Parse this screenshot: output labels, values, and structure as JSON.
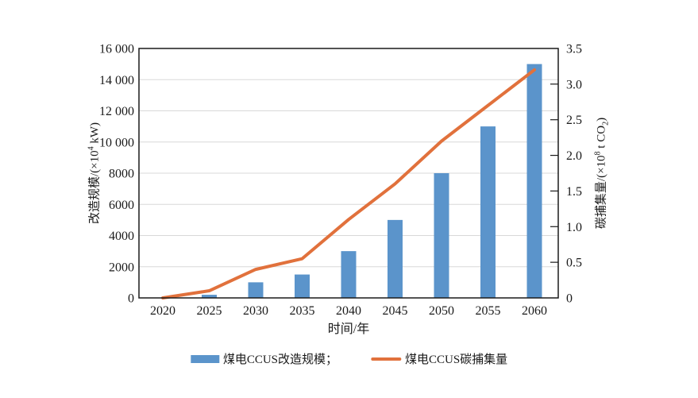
{
  "chart_data": {
    "type": "combo-bar-line",
    "categories": [
      "2020",
      "2025",
      "2030",
      "2035",
      "2040",
      "2045",
      "2050",
      "2055",
      "2060"
    ],
    "series": [
      {
        "name": "煤电CCUS改造规模",
        "type": "bar",
        "axis": "left",
        "values": [
          0,
          200,
          1000,
          1500,
          3000,
          5000,
          8000,
          11000,
          15000
        ]
      },
      {
        "name": "煤电CCUS碳捕集量",
        "type": "line",
        "axis": "right",
        "values": [
          0,
          0.1,
          0.4,
          0.55,
          1.1,
          1.6,
          2.2,
          2.7,
          3.2
        ]
      }
    ],
    "title": "",
    "xlabel": "时间/年",
    "grid": true,
    "legend_position": "bottom",
    "y_left": {
      "title_prefix": "改造规模/(×10",
      "title_sup": "4",
      "title_suffix": " kW)",
      "min": 0,
      "max": 16000,
      "tick_step": 2000,
      "tick_labels": [
        "0",
        "2000",
        "4000",
        "6000",
        "8000",
        "10 000",
        "12 000",
        "14 000",
        "16 000"
      ]
    },
    "y_right": {
      "title_prefix": "碳捕集量/(×10",
      "title_sup": "8",
      "title_mid": " t CO",
      "title_sub": "2",
      "title_suffix": ")",
      "min": 0,
      "max": 3.5,
      "tick_step": 0.5,
      "tick_labels": [
        "0",
        "0.5",
        "1.0",
        "1.5",
        "2.0",
        "2.5",
        "3.0",
        "3.5"
      ]
    },
    "legend": [
      {
        "label": "煤电CCUS改造规模；",
        "swatch": "bar"
      },
      {
        "label": "煤电CCUS碳捕集量",
        "swatch": "line"
      }
    ]
  },
  "colors": {
    "bar": "#5B94CB",
    "line": "#E1713C",
    "grid": "#D8D8D8",
    "axis": "#1A1A1A",
    "text": "#1A1A1A",
    "background": "#FFFFFF"
  }
}
